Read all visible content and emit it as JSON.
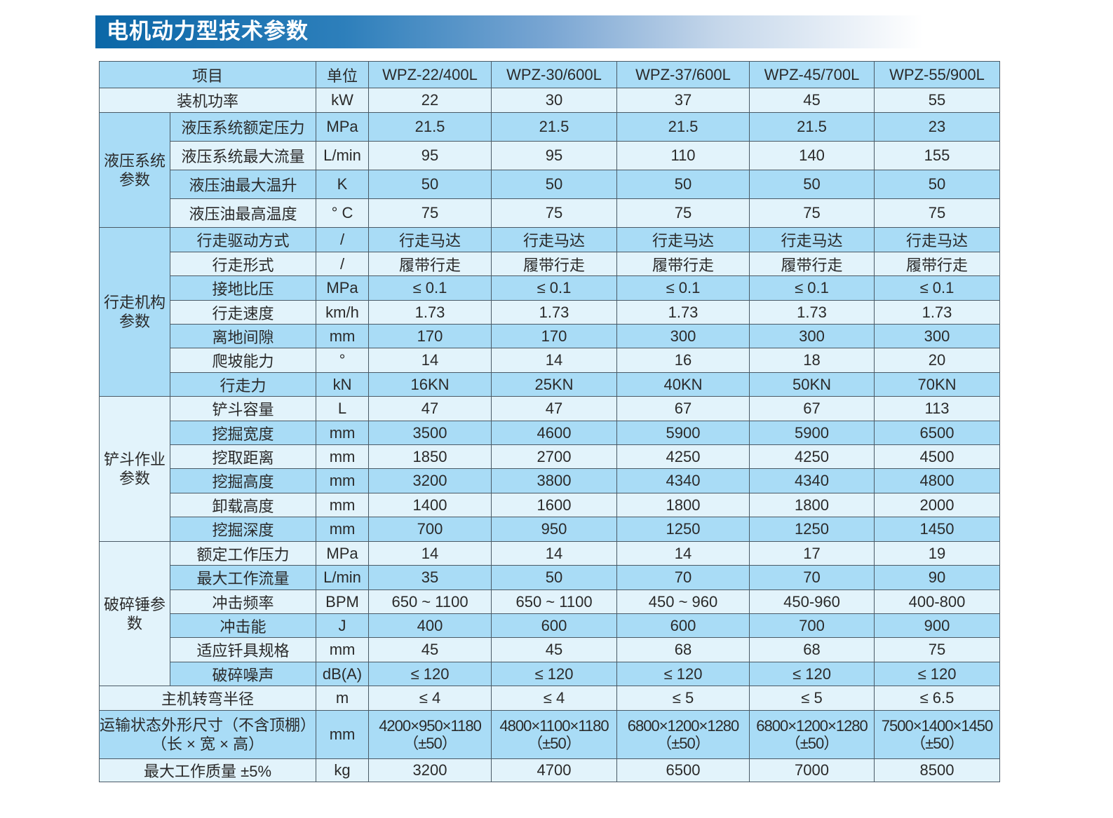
{
  "title": "电机动力型技术参数",
  "colors": {
    "title_start": "#0b67a7",
    "header_bg": "#a9dcf6",
    "row_light": "#e2f3fb",
    "row_dark": "#a9dcf6",
    "border": "#4a5a66"
  },
  "header": {
    "item": "项目",
    "unit": "单位",
    "models": [
      "WPZ-22/400L",
      "WPZ-30/600L",
      "WPZ-37/600L",
      "WPZ-45/700L",
      "WPZ-55/900L"
    ]
  },
  "rows": {
    "power": {
      "label": "装机功率",
      "unit": "kW",
      "values": [
        "22",
        "30",
        "37",
        "45",
        "55"
      ]
    },
    "hyd": {
      "group": "液压系统参数",
      "items": [
        {
          "label": "液压系统额定压力",
          "unit": "MPa",
          "values": [
            "21.5",
            "21.5",
            "21.5",
            "21.5",
            "23"
          ]
        },
        {
          "label": "液压系统最大流量",
          "unit": "L/min",
          "values": [
            "95",
            "95",
            "110",
            "140",
            "155"
          ]
        },
        {
          "label": "液压油最大温升",
          "unit": "K",
          "values": [
            "50",
            "50",
            "50",
            "50",
            "50"
          ]
        },
        {
          "label": "液压油最高温度",
          "unit": "°  C",
          "values": [
            "75",
            "75",
            "75",
            "75",
            "75"
          ]
        }
      ]
    },
    "travel": {
      "group": "行走机构参数",
      "items": [
        {
          "label": "行走驱动方式",
          "unit": "/",
          "values": [
            "行走马达",
            "行走马达",
            "行走马达",
            "行走马达",
            "行走马达"
          ]
        },
        {
          "label": "行走形式",
          "unit": "/",
          "values": [
            "履带行走",
            "履带行走",
            "履带行走",
            "履带行走",
            "履带行走"
          ]
        },
        {
          "label": "接地比压",
          "unit": "MPa",
          "values": [
            "≤ 0.1",
            "≤ 0.1",
            "≤ 0.1",
            "≤ 0.1",
            "≤ 0.1"
          ]
        },
        {
          "label": "行走速度",
          "unit": "km/h",
          "values": [
            "1.73",
            "1.73",
            "1.73",
            "1.73",
            "1.73"
          ]
        },
        {
          "label": "离地间隙",
          "unit": "mm",
          "values": [
            "170",
            "170",
            "300",
            "300",
            "300"
          ]
        },
        {
          "label": "爬坡能力",
          "unit": "°",
          "values": [
            "14",
            "14",
            "16",
            "18",
            "20"
          ]
        },
        {
          "label": "行走力",
          "unit": "kN",
          "values": [
            "16KN",
            "25KN",
            "40KN",
            "50KN",
            "70KN"
          ]
        }
      ]
    },
    "bucket": {
      "group": "铲斗作业参数",
      "items": [
        {
          "label": "铲斗容量",
          "unit": "L",
          "values": [
            "47",
            "47",
            "67",
            "67",
            "113"
          ]
        },
        {
          "label": "挖掘宽度",
          "unit": "mm",
          "values": [
            "3500",
            "4600",
            "5900",
            "5900",
            "6500"
          ]
        },
        {
          "label": "挖取距离",
          "unit": "mm",
          "values": [
            "1850",
            "2700",
            "4250",
            "4250",
            "4500"
          ]
        },
        {
          "label": "挖掘高度",
          "unit": "mm",
          "values": [
            "3200",
            "3800",
            "4340",
            "4340",
            "4800"
          ]
        },
        {
          "label": "卸载高度",
          "unit": "mm",
          "values": [
            "1400",
            "1600",
            "1800",
            "1800",
            "2000"
          ]
        },
        {
          "label": "挖掘深度",
          "unit": "mm",
          "values": [
            "700",
            "950",
            "1250",
            "1250",
            "1450"
          ]
        }
      ]
    },
    "breaker": {
      "group": "破碎锤参数",
      "items": [
        {
          "label": "额定工作压力",
          "unit": "MPa",
          "values": [
            "14",
            "14",
            "14",
            "17",
            "19"
          ]
        },
        {
          "label": "最大工作流量",
          "unit": "L/min",
          "values": [
            "35",
            "50",
            "70",
            "70",
            "90"
          ]
        },
        {
          "label": "冲击频率",
          "unit": "BPM",
          "values": [
            "650 ~ 1100",
            "650 ~ 1100",
            "450 ~ 960",
            "450-960",
            "400-800"
          ]
        },
        {
          "label": "冲击能",
          "unit": "J",
          "values": [
            "400",
            "600",
            "600",
            "700",
            "900"
          ]
        },
        {
          "label": "适应钎具规格",
          "unit": "mm",
          "values": [
            "45",
            "45",
            "68",
            "68",
            "75"
          ]
        },
        {
          "label": "破碎噪声",
          "unit": "dB(A)",
          "values": [
            "≤ 120",
            "≤ 120",
            "≤ 120",
            "≤ 120",
            "≤ 120"
          ]
        }
      ]
    },
    "turn": {
      "label": "主机转弯半径",
      "unit": "m",
      "values": [
        "≤ 4",
        "≤ 4",
        "≤ 5",
        "≤ 5",
        "≤ 6.5"
      ]
    },
    "dims": {
      "label_line1": "运输状态外形尺寸（不含顶棚）",
      "label_line2": "（长 × 宽 × 高）",
      "unit": "mm",
      "values": [
        {
          "l1": "4200×950×1180",
          "l2": "（±50）"
        },
        {
          "l1": "4800×1100×1180",
          "l2": "（±50）"
        },
        {
          "l1": "6800×1200×1280",
          "l2": "（±50）"
        },
        {
          "l1": "6800×1200×1280",
          "l2": "（±50）"
        },
        {
          "l1": "7500×1400×1450",
          "l2": "（±50）"
        }
      ]
    },
    "weight": {
      "label": "最大工作质量 ±5%",
      "unit": "kg",
      "values": [
        "3200",
        "4700",
        "6500",
        "7000",
        "8500"
      ]
    }
  }
}
